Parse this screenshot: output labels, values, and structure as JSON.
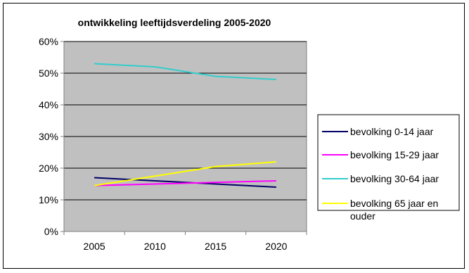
{
  "chart_data": {
    "type": "line",
    "title": "ontwikkeling leeftijdsverdeling 2005-2020",
    "xlabel": "",
    "ylabel": "",
    "x": [
      2005,
      2010,
      2015,
      2020
    ],
    "x_tick_labels": [
      "2005",
      "2010",
      "2015",
      "2020"
    ],
    "ylim": [
      0,
      0.6
    ],
    "y_ticks": [
      0,
      0.1,
      0.2,
      0.3,
      0.4,
      0.5,
      0.6
    ],
    "y_tick_labels": [
      "0%",
      "10%",
      "20%",
      "30%",
      "40%",
      "50%",
      "60%"
    ],
    "grid": true,
    "plot_background": "#c0c0c0",
    "legend_position": "right",
    "series": [
      {
        "name": "bevolking 0-14 jaar",
        "legend_lines": [
          "bevolking 0-14 jaar"
        ],
        "color": "#000066",
        "values": [
          0.17,
          0.16,
          0.15,
          0.14
        ]
      },
      {
        "name": "bevolking 15-29 jaar",
        "legend_lines": [
          "bevolking 15-29 jaar"
        ],
        "color": "#ff00ff",
        "values": [
          0.145,
          0.15,
          0.155,
          0.16
        ]
      },
      {
        "name": "bevolking 30-64 jaar",
        "legend_lines": [
          "bevolking 30-64 jaar"
        ],
        "color": "#33cccc",
        "values": [
          0.53,
          0.52,
          0.49,
          0.48
        ]
      },
      {
        "name": "bevolking 65 jaar en ouder",
        "legend_lines": [
          "bevolking 65 jaar en",
          "ouder"
        ],
        "color": "#ffff00",
        "values": [
          0.145,
          0.175,
          0.205,
          0.22
        ]
      }
    ]
  }
}
